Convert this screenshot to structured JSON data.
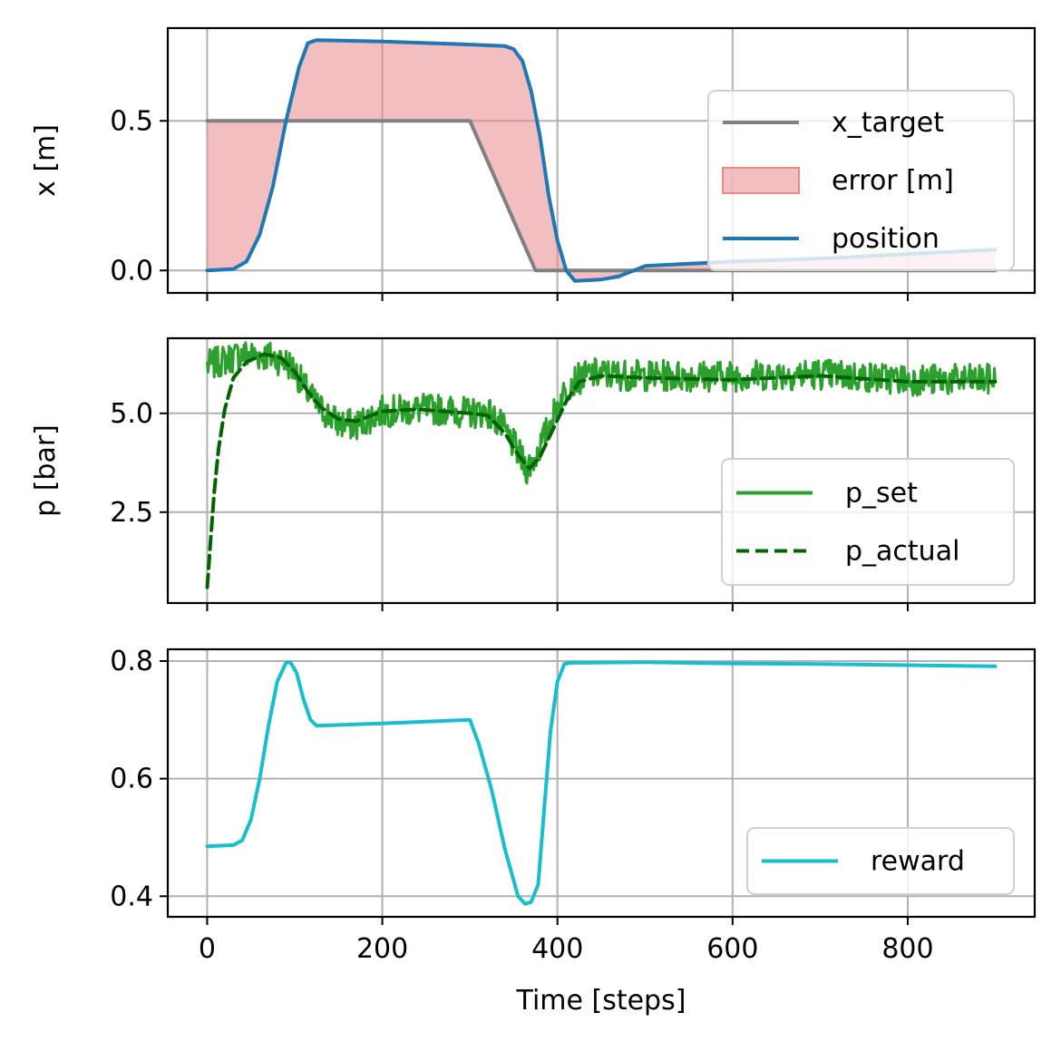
{
  "chart_data": [
    {
      "type": "line",
      "ylabel": "x [m]",
      "xlim": [
        -45,
        945
      ],
      "ylim": [
        -0.075,
        0.81
      ],
      "yticks": [
        0.0,
        0.5
      ],
      "ytick_labels": [
        "0.0",
        "0.5"
      ],
      "xticks": [
        0,
        200,
        400,
        600,
        800
      ],
      "show_xtick_labels": false,
      "grid": true,
      "legend": "right",
      "fill": {
        "name": "error [m]",
        "color": "#e8898c",
        "between": [
          "x_target",
          "position"
        ]
      },
      "series": [
        {
          "name": "x_target",
          "color": "#808080",
          "style": "solid",
          "points": [
            [
              0,
              0.5
            ],
            [
              300,
              0.5
            ],
            [
              375,
              0.0
            ],
            [
              900,
              0.0
            ]
          ]
        },
        {
          "name": "position",
          "color": "#1f77b4",
          "style": "solid",
          "points": [
            [
              0,
              0.0
            ],
            [
              30,
              0.005
            ],
            [
              45,
              0.03
            ],
            [
              60,
              0.12
            ],
            [
              75,
              0.28
            ],
            [
              90,
              0.5
            ],
            [
              105,
              0.68
            ],
            [
              115,
              0.76
            ],
            [
              125,
              0.77
            ],
            [
              200,
              0.765
            ],
            [
              300,
              0.755
            ],
            [
              340,
              0.75
            ],
            [
              350,
              0.74
            ],
            [
              360,
              0.7
            ],
            [
              370,
              0.6
            ],
            [
              380,
              0.45
            ],
            [
              390,
              0.25
            ],
            [
              400,
              0.1
            ],
            [
              410,
              0.0
            ],
            [
              420,
              -0.035
            ],
            [
              450,
              -0.03
            ],
            [
              470,
              -0.02
            ],
            [
              500,
              0.015
            ],
            [
              600,
              0.03
            ],
            [
              700,
              0.04
            ],
            [
              800,
              0.055
            ],
            [
              900,
              0.07
            ]
          ]
        }
      ]
    },
    {
      "type": "line",
      "ylabel": "p [bar]",
      "xlim": [
        -45,
        945
      ],
      "ylim": [
        0.2,
        6.9
      ],
      "yticks": [
        2.5,
        5.0
      ],
      "ytick_labels": [
        "2.5",
        "5.0"
      ],
      "xticks": [
        0,
        200,
        400,
        600,
        800
      ],
      "show_xtick_labels": false,
      "grid": true,
      "legend": "lower right",
      "series": [
        {
          "name": "p_set",
          "color": "#2ca02c",
          "style": "solid",
          "noise": 0.4,
          "points": [
            [
              0,
              6.2
            ],
            [
              40,
              6.5
            ],
            [
              70,
              6.45
            ],
            [
              90,
              6.3
            ],
            [
              100,
              6.1
            ],
            [
              110,
              5.7
            ],
            [
              125,
              5.2
            ],
            [
              150,
              4.75
            ],
            [
              170,
              4.7
            ],
            [
              200,
              5.05
            ],
            [
              240,
              5.1
            ],
            [
              270,
              5.1
            ],
            [
              300,
              5.0
            ],
            [
              320,
              5.05
            ],
            [
              335,
              4.7
            ],
            [
              350,
              4.2
            ],
            [
              365,
              3.6
            ],
            [
              375,
              3.9
            ],
            [
              385,
              4.4
            ],
            [
              400,
              5.2
            ],
            [
              415,
              5.8
            ],
            [
              440,
              6.0
            ],
            [
              500,
              5.95
            ],
            [
              600,
              5.95
            ],
            [
              700,
              6.0
            ],
            [
              800,
              5.85
            ],
            [
              900,
              5.85
            ]
          ]
        },
        {
          "name": "p_actual",
          "color": "#006400",
          "style": "dashed",
          "points": [
            [
              0,
              0.6
            ],
            [
              4,
              1.8
            ],
            [
              8,
              3.0
            ],
            [
              13,
              4.1
            ],
            [
              20,
              5.1
            ],
            [
              30,
              5.9
            ],
            [
              45,
              6.3
            ],
            [
              65,
              6.5
            ],
            [
              85,
              6.4
            ],
            [
              100,
              6.05
            ],
            [
              115,
              5.55
            ],
            [
              130,
              5.15
            ],
            [
              150,
              4.85
            ],
            [
              170,
              4.8
            ],
            [
              200,
              5.05
            ],
            [
              240,
              5.1
            ],
            [
              270,
              5.05
            ],
            [
              300,
              5.0
            ],
            [
              320,
              4.95
            ],
            [
              340,
              4.5
            ],
            [
              355,
              3.95
            ],
            [
              368,
              3.6
            ],
            [
              380,
              3.9
            ],
            [
              395,
              4.6
            ],
            [
              410,
              5.3
            ],
            [
              425,
              5.8
            ],
            [
              450,
              5.95
            ],
            [
              500,
              5.9
            ],
            [
              600,
              5.85
            ],
            [
              700,
              5.95
            ],
            [
              800,
              5.8
            ],
            [
              900,
              5.8
            ]
          ]
        }
      ]
    },
    {
      "type": "line",
      "ylabel": "",
      "xlabel": "Time [steps]",
      "xlim": [
        -45,
        945
      ],
      "ylim": [
        0.365,
        0.82
      ],
      "yticks": [
        0.4,
        0.6,
        0.8
      ],
      "ytick_labels": [
        "0.4",
        "0.6",
        "0.8"
      ],
      "xticks": [
        0,
        200,
        400,
        600,
        800
      ],
      "xtick_labels": [
        "0",
        "200",
        "400",
        "600",
        "800"
      ],
      "show_xtick_labels": true,
      "grid": true,
      "legend": "lower right",
      "series": [
        {
          "name": "reward",
          "color": "#17becf",
          "style": "solid",
          "points": [
            [
              0,
              0.485
            ],
            [
              30,
              0.487
            ],
            [
              40,
              0.495
            ],
            [
              50,
              0.53
            ],
            [
              60,
              0.6
            ],
            [
              70,
              0.69
            ],
            [
              80,
              0.765
            ],
            [
              90,
              0.797
            ],
            [
              95,
              0.798
            ],
            [
              102,
              0.78
            ],
            [
              110,
              0.735
            ],
            [
              118,
              0.7
            ],
            [
              125,
              0.69
            ],
            [
              200,
              0.694
            ],
            [
              300,
              0.7
            ],
            [
              310,
              0.66
            ],
            [
              325,
              0.58
            ],
            [
              340,
              0.48
            ],
            [
              355,
              0.4
            ],
            [
              363,
              0.387
            ],
            [
              370,
              0.39
            ],
            [
              378,
              0.42
            ],
            [
              385,
              0.55
            ],
            [
              392,
              0.68
            ],
            [
              400,
              0.765
            ],
            [
              408,
              0.795
            ],
            [
              415,
              0.797
            ],
            [
              500,
              0.798
            ],
            [
              600,
              0.796
            ],
            [
              700,
              0.795
            ],
            [
              800,
              0.793
            ],
            [
              900,
              0.791
            ]
          ]
        }
      ]
    }
  ]
}
